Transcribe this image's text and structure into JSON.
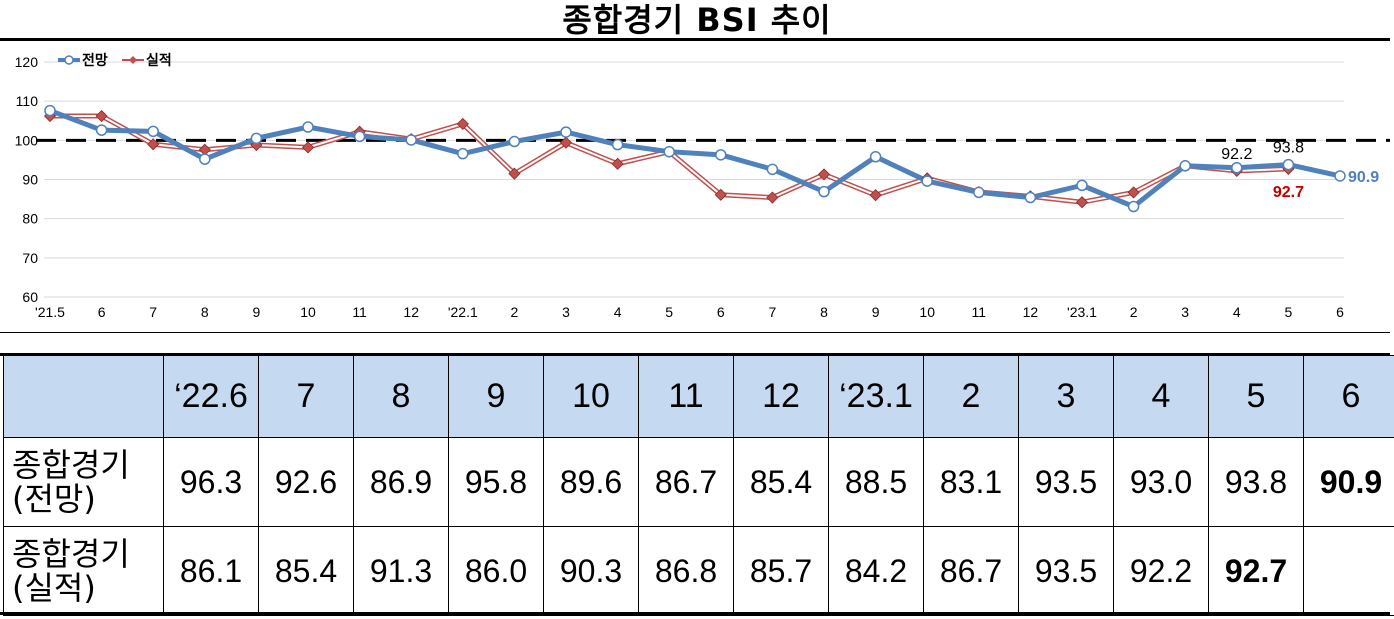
{
  "title": "종합경기 BSI 추이",
  "chart_data": {
    "type": "line",
    "categories": [
      "'21.5",
      "6",
      "7",
      "8",
      "9",
      "10",
      "11",
      "12",
      "'22.1",
      "2",
      "3",
      "4",
      "5",
      "6",
      "7",
      "8",
      "9",
      "10",
      "11",
      "12",
      "'23.1",
      "2",
      "3",
      "4",
      "5",
      "6"
    ],
    "ylim": [
      60,
      120
    ],
    "yticks": [
      60,
      70,
      80,
      90,
      100,
      110,
      120
    ],
    "reference_line": 100,
    "legend": "top-left",
    "series": [
      {
        "name": "전망",
        "color": "#4f81bd",
        "values": [
          107.6,
          102.6,
          102.3,
          95.2,
          100.5,
          103.4,
          101.0,
          100.1,
          96.6,
          99.7,
          102.1,
          98.9,
          97.1,
          96.3,
          92.6,
          86.9,
          95.8,
          89.6,
          86.7,
          85.4,
          88.5,
          83.1,
          93.5,
          93.0,
          93.8,
          90.9
        ]
      },
      {
        "name": "실적",
        "color": "#c0504d",
        "values": [
          106.2,
          106.2,
          99.0,
          97.6,
          98.8,
          98.2,
          102.2,
          100.3,
          104.2,
          91.5,
          99.4,
          94.0,
          97.1,
          86.1,
          85.4,
          91.3,
          86.0,
          90.3,
          86.8,
          85.7,
          84.2,
          86.7,
          93.5,
          92.2,
          92.7,
          null
        ]
      }
    ],
    "annotations": [
      {
        "text": "92.2",
        "series": "실적",
        "category_index": 23,
        "color": "#000000"
      },
      {
        "text": "93.8",
        "series": "전망",
        "category_index": 24,
        "color": "#000000"
      },
      {
        "text": "92.7",
        "series": "실적",
        "category_index": 24,
        "color": "#c00000"
      },
      {
        "text": "90.9",
        "series": "전망",
        "category_index": 25,
        "color": "#4f81bd"
      }
    ]
  },
  "table": {
    "headers": [
      "",
      "‘22.6",
      "7",
      "8",
      "9",
      "10",
      "11",
      "12",
      "‘23.1",
      "2",
      "3",
      "4",
      "5",
      "6"
    ],
    "rows": [
      {
        "label_line1": "종합경기",
        "label_line2": "(전망)",
        "values": [
          "96.3",
          "92.6",
          "86.9",
          "95.8",
          "89.6",
          "86.7",
          "85.4",
          "88.5",
          "83.1",
          "93.5",
          "93.0",
          "93.8",
          "90.9"
        ],
        "bold_index": 12
      },
      {
        "label_line1": "종합경기",
        "label_line2": "(실적)",
        "values": [
          "86.1",
          "85.4",
          "91.3",
          "86.0",
          "90.3",
          "86.8",
          "85.7",
          "84.2",
          "86.7",
          "93.5",
          "92.2",
          "92.7",
          ""
        ],
        "bold_index": 11
      }
    ]
  }
}
